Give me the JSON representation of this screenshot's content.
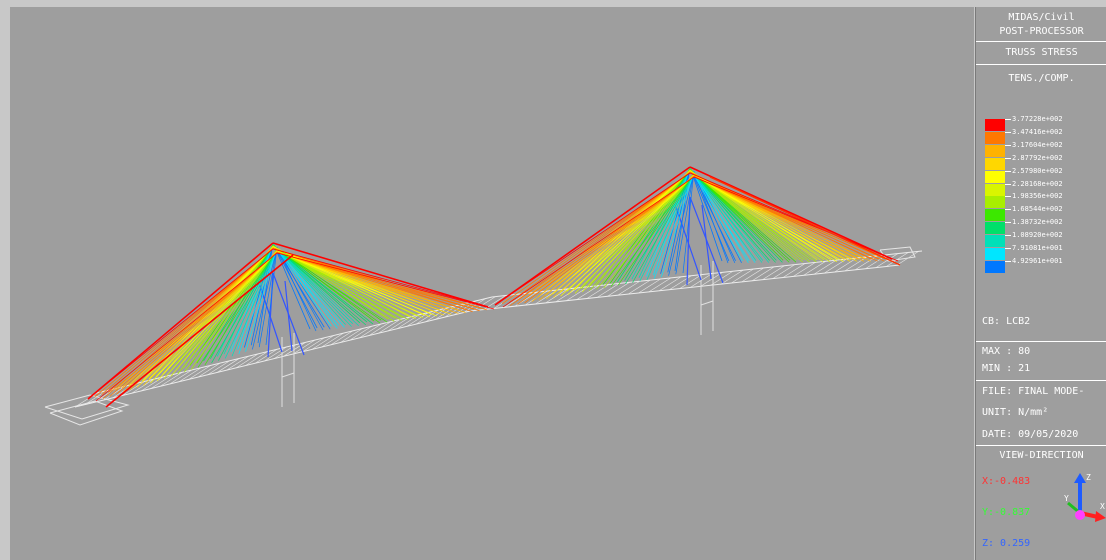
{
  "panel": {
    "title1": "MIDAS/Civil",
    "title2": "POST-PROCESSOR",
    "result_type": "TRUSS STRESS",
    "component": "TENS./COMP.",
    "legend": [
      {
        "value": "3.77228e+002",
        "color": "#ff0000"
      },
      {
        "value": "3.47416e+002",
        "color": "#ff7800"
      },
      {
        "value": "3.17604e+002",
        "color": "#ffb200"
      },
      {
        "value": "2.87792e+002",
        "color": "#ffd700"
      },
      {
        "value": "2.57980e+002",
        "color": "#ffff00"
      },
      {
        "value": "2.28168e+002",
        "color": "#d9f500"
      },
      {
        "value": "1.98356e+002",
        "color": "#a8ee00"
      },
      {
        "value": "1.68544e+002",
        "color": "#3ce800"
      },
      {
        "value": "1.38732e+002",
        "color": "#00e06a"
      },
      {
        "value": "1.08920e+002",
        "color": "#00e0b8"
      },
      {
        "value": "7.91081e+001",
        "color": "#00e6ff"
      },
      {
        "value": "4.92961e+001",
        "color": "#0078ff"
      }
    ],
    "cb": "CB: LCB2",
    "max": "MAX : 80",
    "min": "MIN : 21",
    "file": "FILE: FINAL MODE-",
    "unit": "UNIT: N/mm²",
    "date": "DATE: 09/05/2020",
    "view_direction": "VIEW-DIRECTION",
    "vx": "X:-0.483",
    "vy": "Y:-0.837",
    "vz": "Z: 0.259",
    "vx_color": "#ff3333",
    "vy_color": "#33ff33",
    "vz_color": "#3366ff",
    "axis_labels": {
      "x": "X",
      "y": "Y",
      "z": "Z"
    }
  },
  "viewport": {
    "background": "#9e9e9e",
    "model": "cable-stayed-bridge-wireframe"
  }
}
